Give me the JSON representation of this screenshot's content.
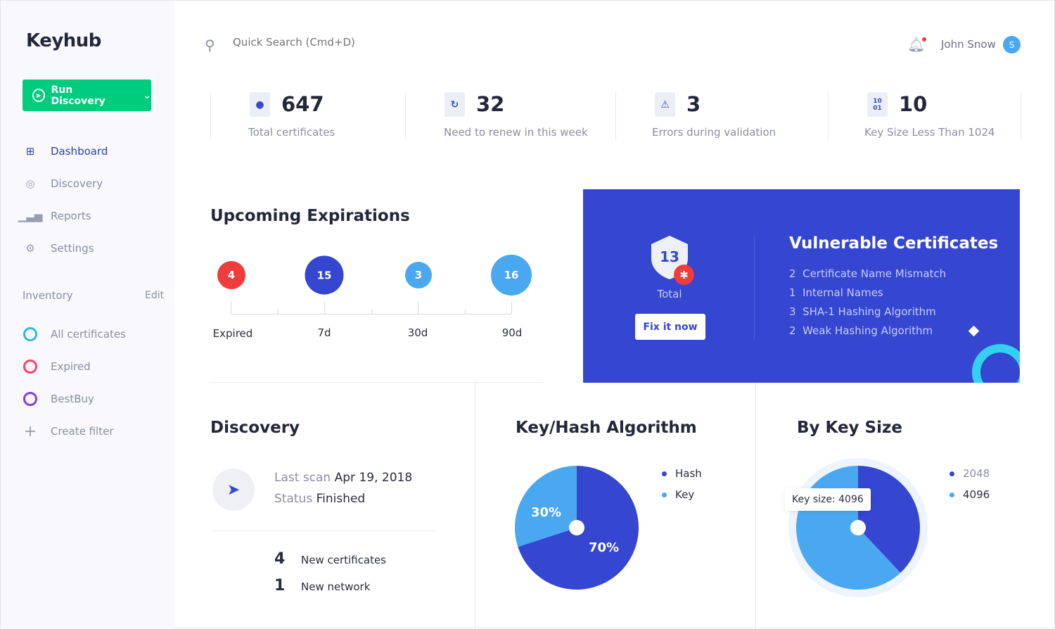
{
  "brand": {
    "name": "Keyhub"
  },
  "sidebar": {
    "run_button": "Run Discovery",
    "nav": [
      {
        "label": "Dashboard",
        "icon": "dashboard-icon"
      },
      {
        "label": "Discovery",
        "icon": "compass-icon"
      },
      {
        "label": "Reports",
        "icon": "bar-chart-icon"
      },
      {
        "label": "Settings",
        "icon": "gear-icon"
      }
    ],
    "inventory_title": "Inventory",
    "edit_label": "Edit",
    "filters": [
      {
        "label": "All certificates",
        "color": "#2fb8e8"
      },
      {
        "label": "Expired",
        "color": "#f5456a"
      },
      {
        "label": "BestBuy",
        "color": "#8a3fd8"
      }
    ],
    "create_filter": "Create filter"
  },
  "header": {
    "search_placeholder": "Quick Search (Cmd+D)",
    "user_name": "John Snow",
    "avatar_initial": "S"
  },
  "stats": [
    {
      "value": "647",
      "label": "Total certificates"
    },
    {
      "value": "32",
      "label": "Need to renew in this week"
    },
    {
      "value": "3",
      "label": "Errors during validation"
    },
    {
      "value": "10",
      "label": "Key Size Less Than 1024",
      "icon_text": "10\n01"
    }
  ],
  "expirations": {
    "title": "Upcoming Expirations",
    "points": [
      {
        "count": "4",
        "label": "Expired",
        "color": "#f03c3c"
      },
      {
        "count": "15",
        "label": "7d",
        "color": "#3546d1"
      },
      {
        "count": "3",
        "label": "30d",
        "color": "#4aa8f0"
      },
      {
        "count": "16",
        "label": "90d",
        "color": "#4aa8f0"
      }
    ]
  },
  "vulnerable": {
    "title": "Vulnerable Certificates",
    "total": "13",
    "total_label": "Total",
    "fix_button": "Fix it now",
    "items": [
      {
        "count": "2",
        "label": "Certificate Name Mismatch"
      },
      {
        "count": "1",
        "label": "Internal Names"
      },
      {
        "count": "3",
        "label": "SHA-1 Hashing Algorithm"
      },
      {
        "count": "2",
        "label": "Weak Hashing Algorithm"
      }
    ]
  },
  "discovery": {
    "title": "Discovery",
    "last_scan_label": "Last scan",
    "last_scan_value": "Apr 19, 2018",
    "status_label": "Status",
    "status_value": "Finished",
    "counts": [
      {
        "value": "4",
        "label": "New certificates"
      },
      {
        "value": "1",
        "label": "New network"
      }
    ]
  },
  "chart_data": [
    {
      "type": "pie",
      "title": "Key/Hash Algorithm",
      "legend": [
        "Hash",
        "Key"
      ],
      "series": [
        {
          "name": "Hash",
          "value": 70,
          "label": "70%",
          "color": "#3546d1"
        },
        {
          "name": "Key",
          "value": 30,
          "label": "30%",
          "color": "#4aa8f0"
        }
      ]
    },
    {
      "type": "pie",
      "title": "By Key Size",
      "legend": [
        "2048",
        "4096"
      ],
      "series": [
        {
          "name": "2048",
          "value": 38,
          "color": "#3546d1"
        },
        {
          "name": "4096",
          "value": 62,
          "color": "#4aa8f0"
        }
      ],
      "tooltip": "Key size: 4096"
    }
  ]
}
